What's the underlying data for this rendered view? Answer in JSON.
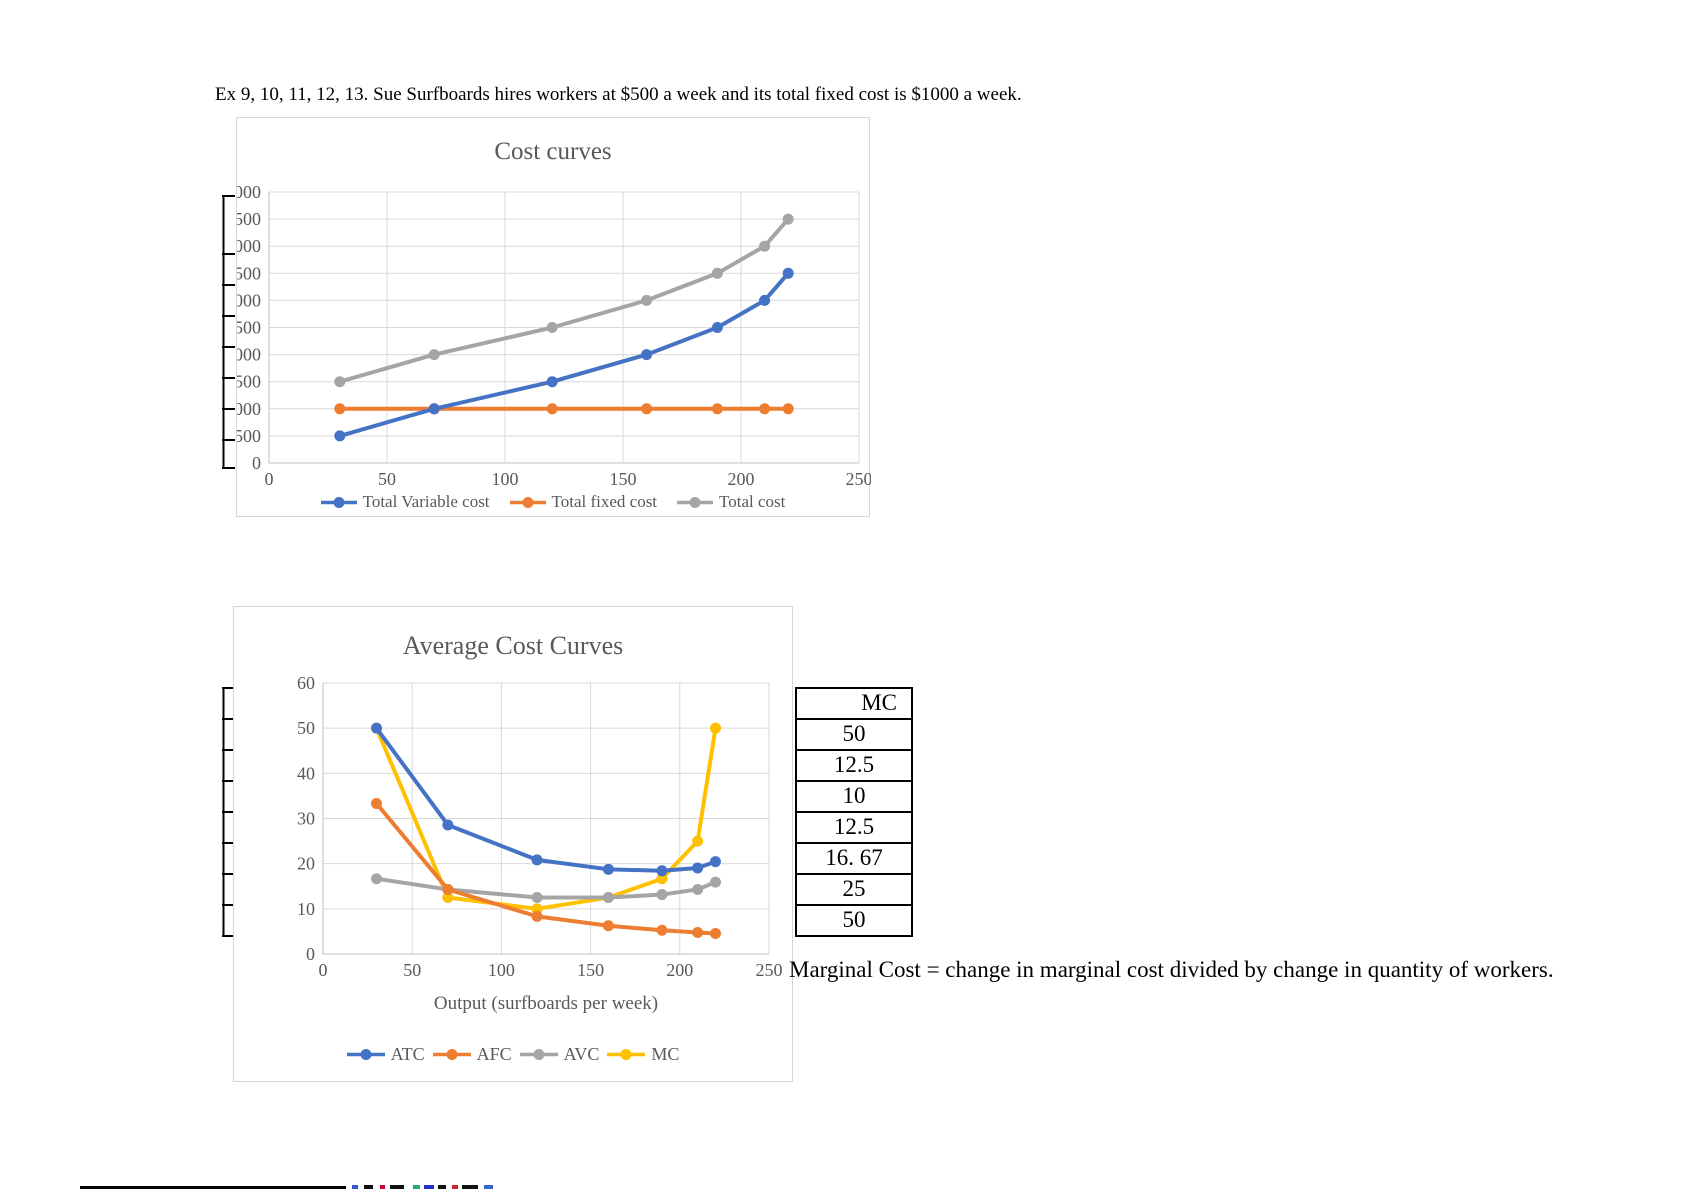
{
  "page": {
    "heading": "Ex 9, 10, 11, 12, 13. Sue Surfboards hires workers at $500 a week and its total fixed cost is $1000 a week.",
    "note": "Marginal Cost = change in marginal cost divided by change in quantity of workers."
  },
  "mc_table": {
    "header": "MC",
    "values": [
      "50",
      "12.5",
      "10",
      "12.5",
      "16. 67",
      "25",
      "50"
    ]
  },
  "colors": {
    "blue": "#4472C4",
    "orange": "#ED7D31",
    "gray": "#A5A5A5",
    "yellow": "#FFC000",
    "grid": "#D9D9D9",
    "axis": "#BFBFBF",
    "chart_text": "#595959"
  },
  "chart_data": [
    {
      "type": "line",
      "title": "Cost curves",
      "xlabel": "",
      "ylabel": "",
      "x": [
        30,
        70,
        120,
        160,
        190,
        210,
        220
      ],
      "series": [
        {
          "name": "Total Variable cost",
          "color": "#4472C4",
          "values": [
            500,
            1000,
            1500,
            2000,
            2500,
            3000,
            3500
          ]
        },
        {
          "name": "Total fixed cost",
          "color": "#ED7D31",
          "values": [
            1000,
            1000,
            1000,
            1000,
            1000,
            1000,
            1000
          ]
        },
        {
          "name": "Total cost",
          "color": "#A5A5A5",
          "values": [
            1500,
            2000,
            2500,
            3000,
            3500,
            4000,
            4500
          ]
        }
      ],
      "xlim": [
        0,
        250
      ],
      "xstep": 50,
      "ylim": [
        0,
        5000
      ],
      "ystep": 500,
      "grid": true,
      "legend_position": "bottom"
    },
    {
      "type": "line",
      "title": "Average Cost Curves",
      "xlabel": "Output (surfboards per week)",
      "ylabel": "",
      "x": [
        30,
        70,
        120,
        160,
        190,
        210,
        220
      ],
      "series": [
        {
          "name": "ATC",
          "color": "#4472C4",
          "values": [
            50,
            28.57,
            20.83,
            18.75,
            18.42,
            19.05,
            20.45
          ]
        },
        {
          "name": "AFC",
          "color": "#ED7D31",
          "values": [
            33.33,
            14.29,
            8.33,
            6.25,
            5.26,
            4.76,
            4.55
          ]
        },
        {
          "name": "AVC",
          "color": "#A5A5A5",
          "values": [
            16.67,
            14.29,
            12.5,
            12.5,
            13.16,
            14.29,
            15.91
          ]
        },
        {
          "name": "MC",
          "color": "#FFC000",
          "values": [
            50,
            12.5,
            10,
            12.5,
            16.67,
            25,
            50
          ]
        }
      ],
      "xlim": [
        0,
        250
      ],
      "xstep": 50,
      "ylim": [
        0,
        60
      ],
      "ystep": 10,
      "grid": true,
      "legend_position": "bottom"
    }
  ]
}
